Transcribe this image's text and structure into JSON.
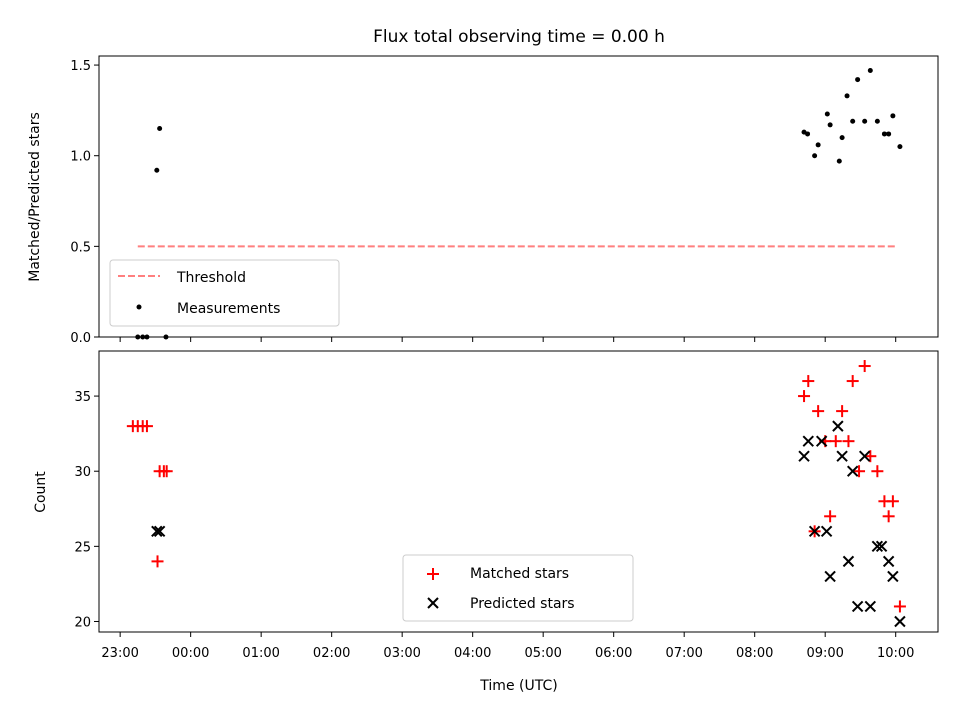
{
  "figure": {
    "title": "Flux total observing time = 0.00 h",
    "xlabel": "Time (UTC)"
  },
  "chart_data": [
    {
      "type": "scatter",
      "name": "ratio",
      "ylabel": "Matched/Predicted stars",
      "xlim": [
        -1.3,
        10.6
      ],
      "ylim": [
        0,
        1.55
      ],
      "xticks": [
        -1,
        0,
        1,
        2,
        3,
        4,
        5,
        6,
        7,
        8,
        9,
        10
      ],
      "xtick_labels": [
        "23:00",
        "00:00",
        "01:00",
        "02:00",
        "03:00",
        "04:00",
        "05:00",
        "06:00",
        "07:00",
        "08:00",
        "09:00",
        "10:00"
      ],
      "yticks": [
        0,
        0.5,
        1.0,
        1.5
      ],
      "ytick_labels": [
        "0.0",
        "0.5",
        "1.0",
        "1.5"
      ],
      "threshold": {
        "name": "Threshold",
        "x": [
          -0.75,
          10.0
        ],
        "y": 0.5,
        "color": "#ff7f7f"
      },
      "series": [
        {
          "name": "Measurements",
          "color": "#000000",
          "x": [
            -0.75,
            -0.68,
            -0.62,
            -0.48,
            -0.44,
            -0.35,
            8.7,
            8.75,
            8.85,
            8.9,
            9.03,
            9.07,
            9.2,
            9.24,
            9.31,
            9.39,
            9.46,
            9.56,
            9.64,
            9.74,
            9.84,
            9.9,
            9.96,
            10.06
          ],
          "y": [
            0,
            0,
            0,
            0.92,
            1.15,
            0,
            1.13,
            1.12,
            1.0,
            1.06,
            1.23,
            1.17,
            0.97,
            1.1,
            1.33,
            1.19,
            1.42,
            1.19,
            1.47,
            1.19,
            1.12,
            1.12,
            1.22,
            1.05
          ]
        }
      ],
      "legend": {
        "location": "lower-left",
        "entries": [
          "Threshold",
          "Measurements"
        ]
      }
    },
    {
      "type": "scatter",
      "name": "counts",
      "ylabel": "Count",
      "xlim": [
        -1.3,
        10.6
      ],
      "ylim": [
        19.3,
        38.0
      ],
      "xticks": [
        -1,
        0,
        1,
        2,
        3,
        4,
        5,
        6,
        7,
        8,
        9,
        10
      ],
      "xtick_labels": [
        "23:00",
        "00:00",
        "01:00",
        "02:00",
        "03:00",
        "04:00",
        "05:00",
        "06:00",
        "07:00",
        "08:00",
        "09:00",
        "10:00"
      ],
      "yticks": [
        20,
        25,
        30,
        35
      ],
      "ytick_labels": [
        "20",
        "25",
        "30",
        "35"
      ],
      "series": [
        {
          "name": "Matched stars",
          "color": "#ff0000",
          "marker": "+",
          "x": [
            -0.82,
            -0.75,
            -0.68,
            -0.62,
            -0.47,
            -0.44,
            -0.38,
            -0.34,
            8.7,
            8.76,
            8.85,
            8.9,
            9.0,
            9.07,
            9.15,
            9.24,
            9.33,
            9.39,
            9.48,
            9.56,
            9.64,
            9.74,
            9.84,
            9.9,
            9.96,
            10.06
          ],
          "y": [
            33,
            33,
            33,
            33,
            24,
            30,
            30,
            30,
            35,
            36,
            26,
            34,
            32,
            27,
            32,
            34,
            32,
            36,
            30,
            37,
            31,
            30,
            28,
            27,
            28,
            21
          ]
        },
        {
          "name": "Predicted stars",
          "color": "#000000",
          "marker": "x",
          "x": [
            -0.48,
            -0.44,
            8.7,
            8.76,
            8.85,
            8.95,
            9.02,
            9.07,
            9.18,
            9.24,
            9.33,
            9.39,
            9.46,
            9.56,
            9.64,
            9.74,
            9.8,
            9.9,
            9.96,
            10.06
          ],
          "y": [
            26,
            26,
            31,
            32,
            26,
            32,
            26,
            23,
            33,
            31,
            24,
            30,
            21,
            31,
            21,
            25,
            25,
            24,
            23,
            20
          ]
        }
      ],
      "legend": {
        "location": "lower-center",
        "entries": [
          "Matched stars",
          "Predicted stars"
        ]
      }
    }
  ]
}
